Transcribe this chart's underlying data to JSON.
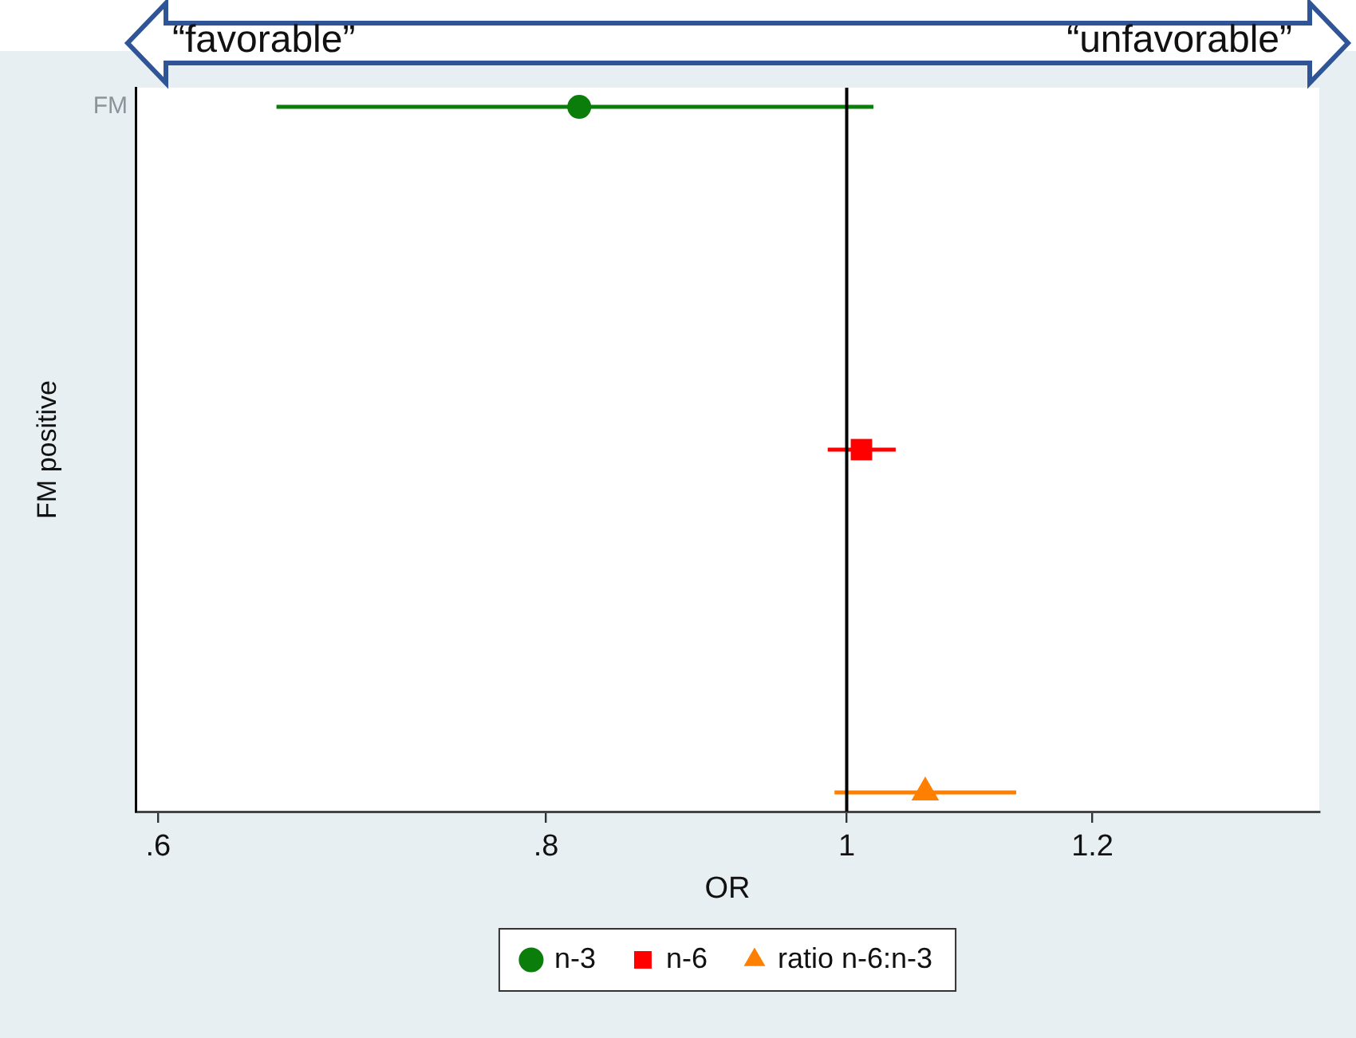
{
  "chart_data": {
    "type": "scatter",
    "orientation": "horizontal",
    "categories": [
      "FM",
      null,
      null
    ],
    "series": [
      {
        "name": "n-3",
        "color": "#0a7d0a",
        "marker": "circle",
        "values": [
          0.82,
          null,
          null
        ],
        "errors": [
          [
            0.655,
            1.02
          ],
          null,
          null
        ]
      },
      {
        "name": "n-6",
        "color": "#ff0000",
        "marker": "square",
        "values": [
          null,
          1.011,
          null
        ],
        "errors": [
          null,
          [
            0.986,
            1.037
          ],
          null
        ]
      },
      {
        "name": "ratio n-6:n-3",
        "color": "#ff7f00",
        "marker": "triangle",
        "values": [
          null,
          null,
          1.06
        ],
        "errors": [
          null,
          null,
          [
            0.991,
            1.134
          ]
        ]
      }
    ],
    "xlabel": "OR",
    "ylabel": "FM positive",
    "xlim": [
      0.59,
      1.42
    ],
    "xticks": [
      {
        "value": 0.6,
        "label": ".6"
      },
      {
        "value": 0.8,
        "label": ".8"
      },
      1,
      1.2
    ],
    "log": "x",
    "ref_lines": [
      {
        "axis": "x",
        "value": 1,
        "color": "#000000"
      }
    ],
    "legend": "bottom",
    "annotations": [
      "“favorable”",
      "“unfavorable”"
    ]
  }
}
